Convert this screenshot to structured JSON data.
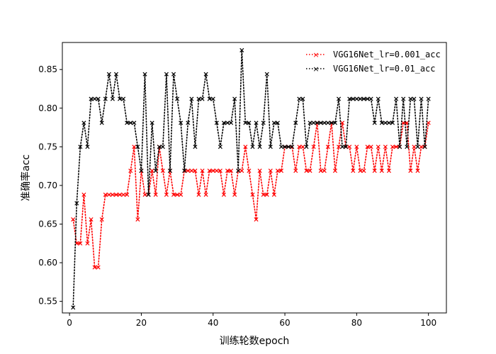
{
  "chart_data": {
    "type": "line",
    "title": "",
    "xlabel": "训练轮数epoch",
    "ylabel": "准确率acc",
    "xlim": [
      -2,
      105
    ],
    "ylim": [
      0.535,
      0.885
    ],
    "xticks": [
      0,
      20,
      40,
      60,
      80,
      100
    ],
    "yticks": [
      0.55,
      0.6,
      0.65,
      0.7,
      0.75,
      0.8,
      0.85
    ],
    "legend_position": "top-right",
    "grid": false,
    "x": [
      1,
      2,
      3,
      4,
      5,
      6,
      7,
      8,
      9,
      10,
      11,
      12,
      13,
      14,
      15,
      16,
      17,
      18,
      19,
      20,
      21,
      22,
      23,
      24,
      25,
      26,
      27,
      28,
      29,
      30,
      31,
      32,
      33,
      34,
      35,
      36,
      37,
      38,
      39,
      40,
      41,
      42,
      43,
      44,
      45,
      46,
      47,
      48,
      49,
      50,
      51,
      52,
      53,
      54,
      55,
      56,
      57,
      58,
      59,
      60,
      61,
      62,
      63,
      64,
      65,
      66,
      67,
      68,
      69,
      70,
      71,
      72,
      73,
      74,
      75,
      76,
      77,
      78,
      79,
      80,
      81,
      82,
      83,
      84,
      85,
      86,
      87,
      88,
      89,
      90,
      91,
      92,
      93,
      94,
      95,
      96,
      97,
      98,
      99,
      100
    ],
    "series": [
      {
        "name": "VGG16Net_lr=0.001_acc",
        "color": "#ff0000",
        "values": [
          0.656,
          0.625,
          0.625,
          0.688,
          0.625,
          0.656,
          0.594,
          0.594,
          0.656,
          0.688,
          0.688,
          0.688,
          0.688,
          0.688,
          0.688,
          0.688,
          0.719,
          0.75,
          0.656,
          0.719,
          0.688,
          0.688,
          0.719,
          0.688,
          0.75,
          0.719,
          0.688,
          0.719,
          0.688,
          0.688,
          0.688,
          0.719,
          0.719,
          0.719,
          0.719,
          0.688,
          0.719,
          0.688,
          0.719,
          0.719,
          0.719,
          0.719,
          0.688,
          0.719,
          0.719,
          0.688,
          0.719,
          0.719,
          0.75,
          0.719,
          0.688,
          0.656,
          0.719,
          0.688,
          0.688,
          0.719,
          0.688,
          0.719,
          0.719,
          0.75,
          0.75,
          0.75,
          0.719,
          0.75,
          0.75,
          0.719,
          0.719,
          0.75,
          0.781,
          0.719,
          0.719,
          0.75,
          0.781,
          0.719,
          0.75,
          0.781,
          0.75,
          0.75,
          0.719,
          0.75,
          0.719,
          0.719,
          0.75,
          0.75,
          0.719,
          0.75,
          0.719,
          0.75,
          0.719,
          0.75,
          0.75,
          0.75,
          0.781,
          0.781,
          0.719,
          0.75,
          0.719,
          0.75,
          0.75,
          0.781
        ]
      },
      {
        "name": "VGG16Net_lr=0.01_acc",
        "color": "#000000",
        "values": [
          0.542,
          0.677,
          0.75,
          0.781,
          0.75,
          0.812,
          0.812,
          0.812,
          0.781,
          0.812,
          0.844,
          0.812,
          0.844,
          0.812,
          0.812,
          0.781,
          0.781,
          0.781,
          0.75,
          0.719,
          0.844,
          0.688,
          0.781,
          0.719,
          0.75,
          0.75,
          0.844,
          0.719,
          0.844,
          0.812,
          0.781,
          0.719,
          0.781,
          0.812,
          0.75,
          0.812,
          0.812,
          0.844,
          0.812,
          0.812,
          0.781,
          0.75,
          0.781,
          0.781,
          0.781,
          0.812,
          0.719,
          0.875,
          0.781,
          0.781,
          0.75,
          0.781,
          0.75,
          0.781,
          0.844,
          0.75,
          0.781,
          0.781,
          0.75,
          0.75,
          0.75,
          0.75,
          0.781,
          0.812,
          0.812,
          0.75,
          0.781,
          0.781,
          0.781,
          0.781,
          0.781,
          0.781,
          0.781,
          0.781,
          0.812,
          0.75,
          0.75,
          0.812,
          0.812,
          0.812,
          0.812,
          0.812,
          0.812,
          0.812,
          0.781,
          0.812,
          0.781,
          0.781,
          0.781,
          0.781,
          0.812,
          0.75,
          0.812,
          0.75,
          0.812,
          0.812,
          0.75,
          0.812,
          0.75,
          0.812
        ]
      }
    ]
  }
}
